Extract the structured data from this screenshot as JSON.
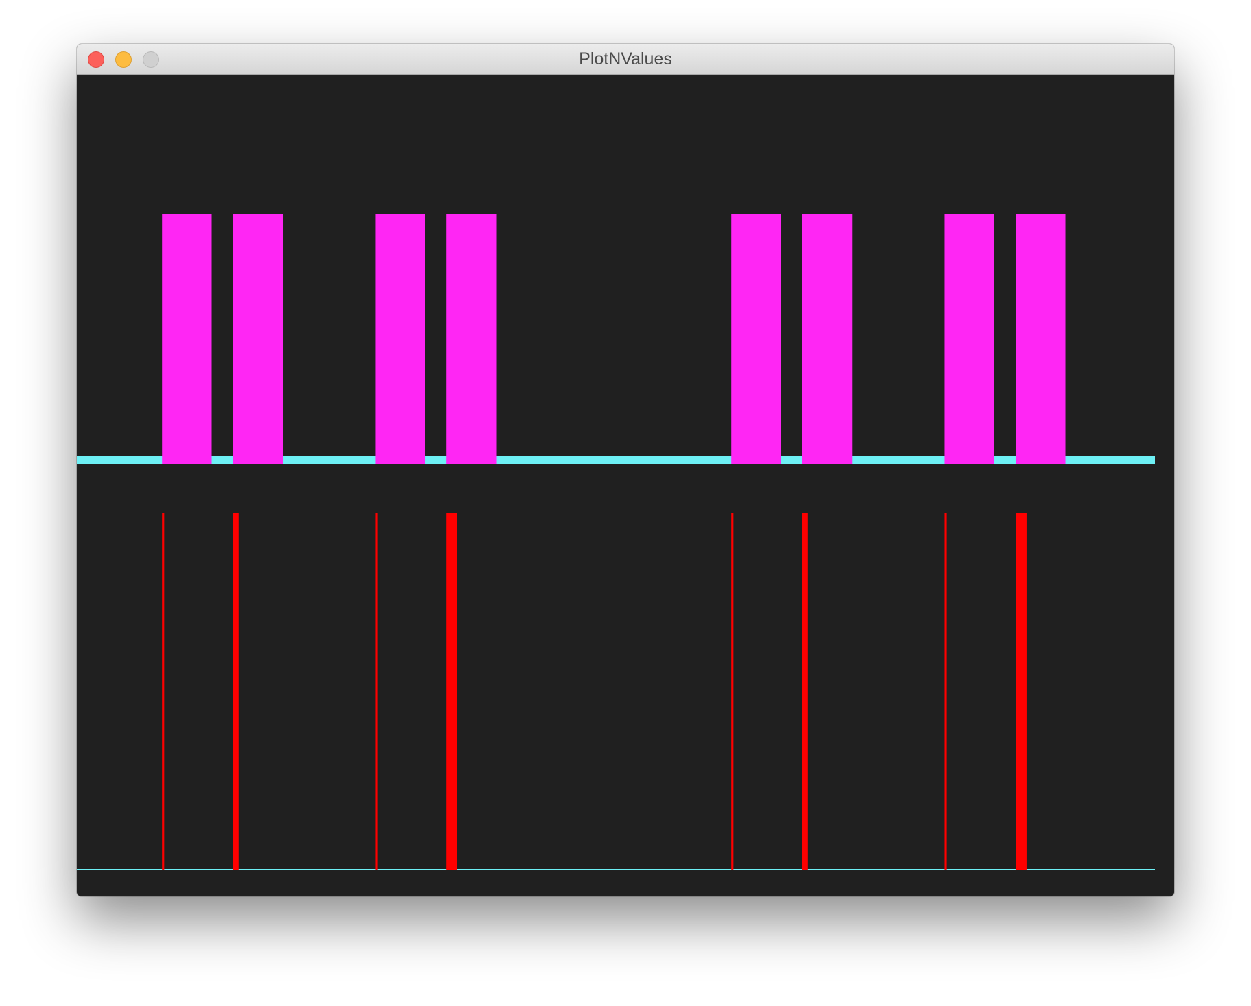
{
  "window": {
    "title": "PlotNValues"
  },
  "colors": {
    "background": "#202020",
    "upper_series": "#ff26f4",
    "lower_series": "#ff0000",
    "baseline": "#6ef0f5",
    "close": "#fc605b",
    "minimize": "#fdbc40",
    "zoom": "#d0d0d0"
  },
  "chart_data": [
    {
      "type": "bar",
      "x_range": [
        0,
        1.0
      ],
      "ylim": [
        0,
        1
      ],
      "bars": [
        {
          "start": 0.079,
          "end": 0.125,
          "value": 1
        },
        {
          "start": 0.145,
          "end": 0.191,
          "value": 1
        },
        {
          "start": 0.277,
          "end": 0.323,
          "value": 1
        },
        {
          "start": 0.343,
          "end": 0.389,
          "value": 1
        },
        {
          "start": 0.607,
          "end": 0.653,
          "value": 1
        },
        {
          "start": 0.673,
          "end": 0.719,
          "value": 1
        },
        {
          "start": 0.805,
          "end": 0.851,
          "value": 1
        },
        {
          "start": 0.871,
          "end": 0.917,
          "value": 1
        }
      ]
    },
    {
      "type": "bar",
      "x_range": [
        0,
        1.0
      ],
      "ylim": [
        0,
        1
      ],
      "bars": [
        {
          "start": 0.079,
          "end": 0.081,
          "value": 1
        },
        {
          "start": 0.145,
          "end": 0.15,
          "value": 1
        },
        {
          "start": 0.277,
          "end": 0.279,
          "value": 1
        },
        {
          "start": 0.343,
          "end": 0.353,
          "value": 1
        },
        {
          "start": 0.607,
          "end": 0.609,
          "value": 1
        },
        {
          "start": 0.673,
          "end": 0.678,
          "value": 1
        },
        {
          "start": 0.805,
          "end": 0.807,
          "value": 1
        },
        {
          "start": 0.871,
          "end": 0.881,
          "value": 1
        }
      ]
    }
  ]
}
